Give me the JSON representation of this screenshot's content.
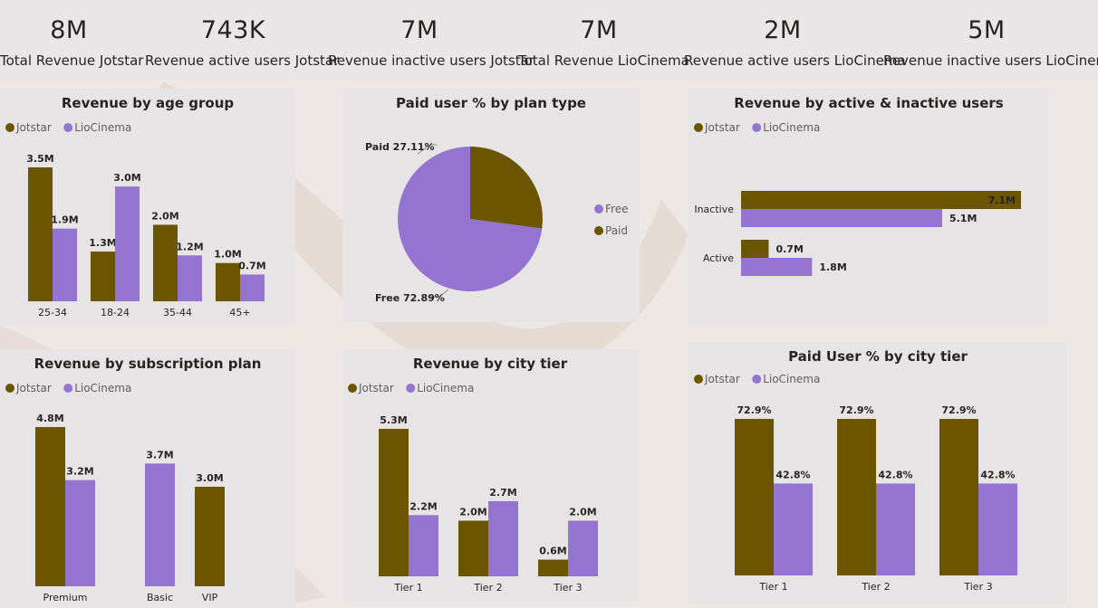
{
  "colors": {
    "jotstar": "#6b5500",
    "liocinema": "#9473d1"
  },
  "kpis": [
    {
      "value": "8M",
      "label": "Total Revenue Jotstar"
    },
    {
      "value": "743K",
      "label": "Revenue active users Jotstar"
    },
    {
      "value": "7M",
      "label": "Revenue inactive users Jotstar"
    },
    {
      "value": "7M",
      "label": "Total Revenue LioCinema"
    },
    {
      "value": "2M",
      "label": "Revenue active users LioCinema"
    },
    {
      "value": "5M",
      "label": "Revenue inactive users LioCinema"
    }
  ],
  "chart_data": [
    {
      "id": "age",
      "type": "bar",
      "title": "Revenue by age group",
      "categories": [
        "25-34",
        "18-24",
        "35-44",
        "45+"
      ],
      "series": [
        {
          "name": "Jotstar",
          "values": [
            3.5,
            1.3,
            2.0,
            1.0
          ],
          "labels": [
            "3.5M",
            "1.3M",
            "2.0M",
            "1.0M"
          ]
        },
        {
          "name": "LioCinema",
          "values": [
            1.9,
            3.0,
            1.2,
            0.7
          ],
          "labels": [
            "1.9M",
            "3.0M",
            "1.2M",
            "0.7M"
          ]
        }
      ],
      "legend": "top-left",
      "grid": false
    },
    {
      "id": "plan",
      "type": "pie",
      "title": "Paid user % by plan type",
      "slices": [
        {
          "name": "Paid",
          "value": 27.11,
          "label": "Paid 27.11%"
        },
        {
          "name": "Free",
          "value": 72.89,
          "label": "Free 72.89%"
        }
      ],
      "legend_items": [
        "Free",
        "Paid"
      ],
      "legend": "right"
    },
    {
      "id": "active",
      "type": "bar",
      "orientation": "horizontal",
      "title": "Revenue by active & inactive users",
      "categories": [
        "Inactive",
        "Active"
      ],
      "series": [
        {
          "name": "Jotstar",
          "values": [
            7.1,
            0.7
          ],
          "labels": [
            "7.1M",
            "0.7M"
          ]
        },
        {
          "name": "LioCinema",
          "values": [
            5.1,
            1.8
          ],
          "labels": [
            "5.1M",
            "1.8M"
          ]
        }
      ],
      "legend": "top-left",
      "grid": false
    },
    {
      "id": "sub",
      "type": "bar",
      "title": "Revenue by subscription plan",
      "categories": [
        "Premium",
        "Basic",
        "VIP"
      ],
      "series": [
        {
          "name": "Jotstar",
          "values": [
            4.8,
            null,
            3.0
          ],
          "labels": [
            "4.8M",
            "",
            "3.0M"
          ]
        },
        {
          "name": "LioCinema",
          "values": [
            3.2,
            3.7,
            null
          ],
          "labels": [
            "3.2M",
            "3.7M",
            ""
          ]
        }
      ],
      "legend": "top-left",
      "grid": false
    },
    {
      "id": "city",
      "type": "bar",
      "title": "Revenue by city tier",
      "categories": [
        "Tier 1",
        "Tier 2",
        "Tier 3"
      ],
      "series": [
        {
          "name": "Jotstar",
          "values": [
            5.3,
            2.0,
            0.6
          ],
          "labels": [
            "5.3M",
            "2.0M",
            "0.6M"
          ]
        },
        {
          "name": "LioCinema",
          "values": [
            2.2,
            2.7,
            2.0
          ],
          "labels": [
            "2.2M",
            "2.7M",
            "2.0M"
          ]
        }
      ],
      "legend": "top-left",
      "grid": false
    },
    {
      "id": "paidcity",
      "type": "bar",
      "title": "Paid User % by city tier",
      "categories": [
        "Tier 1",
        "Tier 2",
        "Tier 3"
      ],
      "series": [
        {
          "name": "Jotstar",
          "values": [
            72.9,
            72.9,
            72.9
          ],
          "labels": [
            "72.9%",
            "72.9%",
            "72.9%"
          ]
        },
        {
          "name": "LioCinema",
          "values": [
            42.8,
            42.8,
            42.8
          ],
          "labels": [
            "42.8%",
            "42.8%",
            "42.8%"
          ]
        }
      ],
      "legend": "top-left",
      "grid": false
    }
  ]
}
